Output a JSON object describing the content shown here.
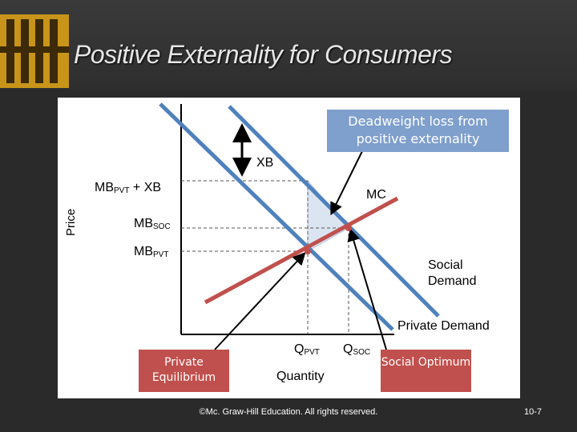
{
  "slide": {
    "title": "Positive Externality for Consumers",
    "copyright": "©Mc. Graw-Hill Education. All rights reserved.",
    "page_number": "10-7"
  },
  "diagram": {
    "callout": "Deadweight loss from positive externality",
    "xb_label": "XB",
    "mb_pvt_plus_xb": {
      "main": "MB",
      "sub": "PVT",
      "tail": " + XB"
    },
    "mc_label": "MC",
    "mb_soc": {
      "main": "MB",
      "sub": "SOC"
    },
    "mb_pvt": {
      "main": "MB",
      "sub": "PVT"
    },
    "social_demand": "Social Demand",
    "private_demand": "Private Demand",
    "y_axis_label": "Price",
    "x_axis_label": "Quantity",
    "q_pvt": {
      "main": "Q",
      "sub": "PVT"
    },
    "q_soc": {
      "main": "Q",
      "sub": "SOC"
    },
    "private_equilibrium": "Private Equilibrium",
    "social_optimum": "Social Optimum",
    "colors": {
      "demand": "#4f81bd",
      "supply": "#c0504d",
      "shade": "#dbe5f1"
    }
  }
}
